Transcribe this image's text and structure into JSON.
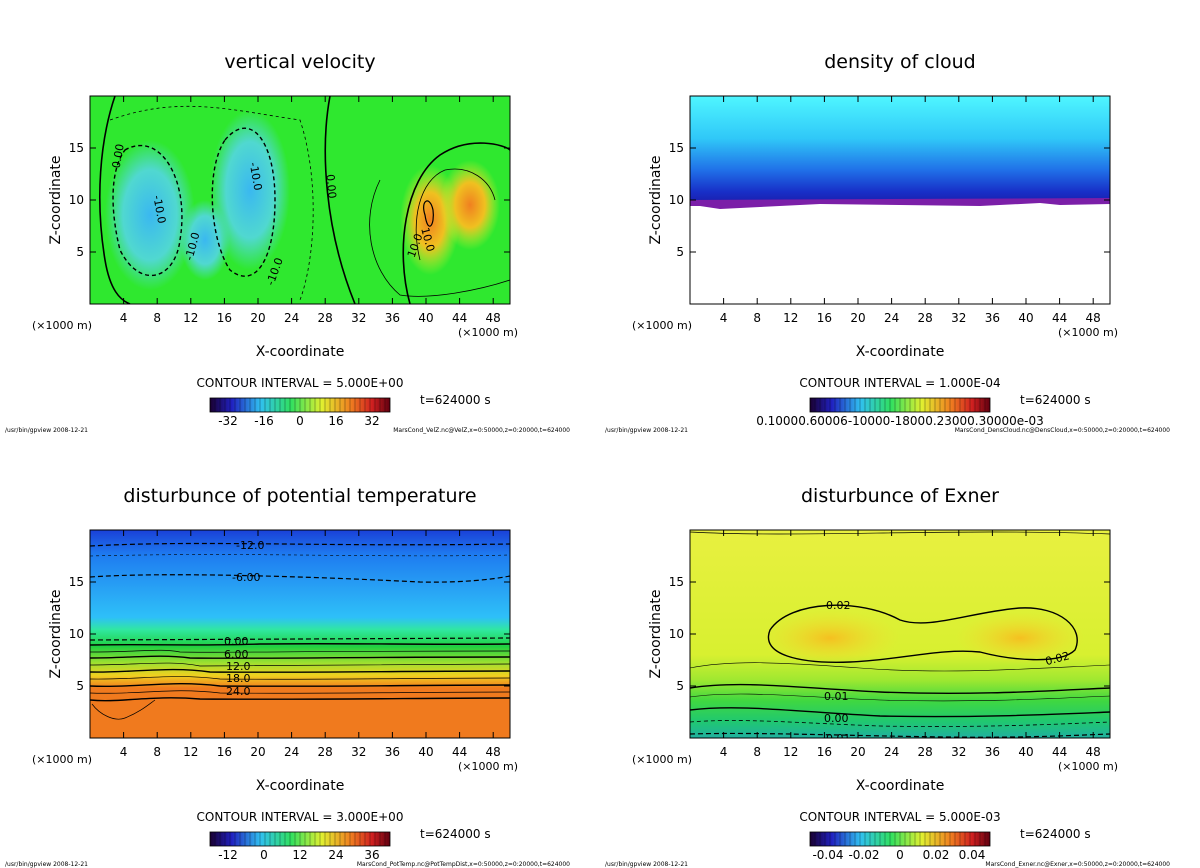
{
  "colors": {
    "green": "#2fe82f",
    "lightblue": "#4fd8e8",
    "yellow": "#d6f03a",
    "orange": "#f07a1e",
    "cyan": "#4ff1ff",
    "blue": "#1a52e0",
    "purple": "#7b1fa8"
  },
  "chart_data": [
    {
      "type": "contour",
      "title": "vertical velocity",
      "xlabel": "X-coordinate",
      "ylabel": "Z-coordinate",
      "x_unit": "(×1000 m)",
      "xlim": [
        0,
        50
      ],
      "ylim": [
        0,
        20
      ],
      "xticks": [
        4,
        8,
        12,
        16,
        20,
        24,
        28,
        32,
        36,
        40,
        44,
        48
      ],
      "yticks": [
        5,
        10,
        15
      ],
      "contour_interval": "CONTOUR INTERVAL = 5.000E+00",
      "time": "t=624000 s",
      "colorbar_ticks": [
        "-32",
        "-16",
        "0",
        "16",
        "32"
      ],
      "contour_labels": [
        "0.00",
        "0.00",
        "-10.0",
        "-10.0",
        "-10.0",
        "-10.0",
        "10.0",
        "10.0"
      ],
      "footer_left": "/usr/bin/gpview  2008-12-21",
      "footer_right": "MarsCond_VelZ.nc@VelZ,x=0:50000,z=0:20000,t=624000"
    },
    {
      "type": "contour",
      "title": "density of cloud",
      "xlabel": "X-coordinate",
      "ylabel": "Z-coordinate",
      "x_unit": "(×1000 m)",
      "xlim": [
        0,
        50
      ],
      "ylim": [
        0,
        20
      ],
      "xticks": [
        4,
        8,
        12,
        16,
        20,
        24,
        28,
        32,
        36,
        40,
        44,
        48
      ],
      "yticks": [
        5,
        10,
        15
      ],
      "contour_interval": "CONTOUR INTERVAL = 1.000E-04",
      "time": "t=624000 s",
      "colorbar_ticks": [
        "0.10000.60006-10000-18000.23000.30000e-03"
      ],
      "contour_labels": [],
      "footer_left": "/usr/bin/gpview  2008-12-21",
      "footer_right": "MarsCond_DensCloud.nc@DensCloud,x=0:50000,z=0:20000,t=624000"
    },
    {
      "type": "contour",
      "title": "disturbunce of potential temperature",
      "xlabel": "X-coordinate",
      "ylabel": "Z-coordinate",
      "x_unit": "(×1000 m)",
      "xlim": [
        0,
        50
      ],
      "ylim": [
        0,
        20
      ],
      "xticks": [
        4,
        8,
        12,
        16,
        20,
        24,
        28,
        32,
        36,
        40,
        44,
        48
      ],
      "yticks": [
        5,
        10,
        15
      ],
      "contour_interval": "CONTOUR INTERVAL = 3.000E+00",
      "time": "t=624000 s",
      "colorbar_ticks": [
        "-12",
        "0",
        "12",
        "24",
        "36"
      ],
      "contour_labels": [
        "-12.0",
        "-6.00",
        "0.00",
        "6.00",
        "12.0",
        "18.0",
        "24.0"
      ],
      "footer_left": "/usr/bin/gpview  2008-12-21",
      "footer_right": "MarsCond_PotTemp.nc@PotTempDist,x=0:50000,z=0:20000,t=624000"
    },
    {
      "type": "contour",
      "title": "disturbunce of Exner",
      "xlabel": "X-coordinate",
      "ylabel": "Z-coordinate",
      "x_unit": "(×1000 m)",
      "xlim": [
        0,
        50
      ],
      "ylim": [
        0,
        20
      ],
      "xticks": [
        4,
        8,
        12,
        16,
        20,
        24,
        28,
        32,
        36,
        40,
        44,
        48
      ],
      "yticks": [
        5,
        10,
        15
      ],
      "contour_interval": "CONTOUR INTERVAL = 5.000E-03",
      "time": "t=624000 s",
      "colorbar_ticks": [
        "-0.04",
        "-0.02",
        "0",
        "0.02",
        "0.04"
      ],
      "contour_labels": [
        "0.02",
        "0.02",
        "0.01",
        "0.00",
        "-0.01"
      ],
      "footer_left": "/usr/bin/gpview  2008-12-21",
      "footer_right": "MarsCond_Exner.nc@Exner,x=0:50000,z=0:20000,t=624000"
    }
  ]
}
